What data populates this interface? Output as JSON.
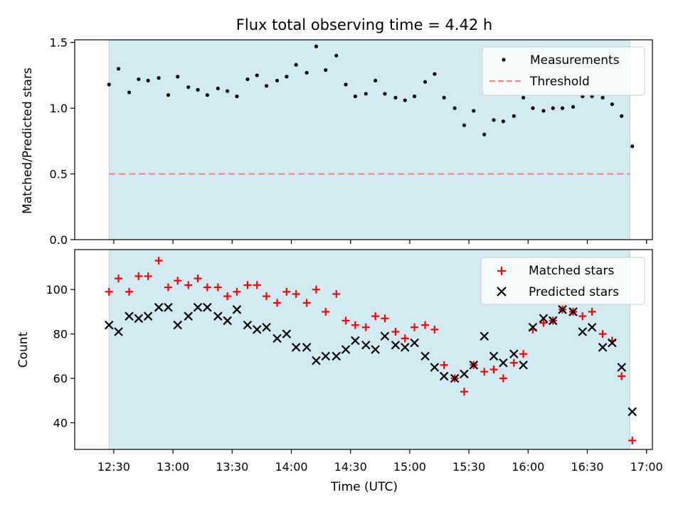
{
  "title": "Flux total observing time = 4.42 h",
  "colors": {
    "shade": "#add8e6",
    "measurements": "#000000",
    "threshold": "#ff7f7f",
    "matched": "#ff0000",
    "predicted": "#000000"
  },
  "x_axis": {
    "label": "Time (UTC)",
    "ticks": [
      {
        "t": 12.5,
        "label": "12:30"
      },
      {
        "t": 13.0,
        "label": "13:00"
      },
      {
        "t": 13.5,
        "label": "13:30"
      },
      {
        "t": 14.0,
        "label": "14:00"
      },
      {
        "t": 14.5,
        "label": "14:30"
      },
      {
        "t": 15.0,
        "label": "15:00"
      },
      {
        "t": 15.5,
        "label": "15:30"
      },
      {
        "t": 16.0,
        "label": "16:00"
      },
      {
        "t": 16.5,
        "label": "16:30"
      },
      {
        "t": 17.0,
        "label": "17:00"
      }
    ]
  },
  "chart_data": [
    {
      "type": "scatter",
      "title": "Flux total observing time = 4.42 h",
      "xlabel": "",
      "ylabel": "Matched/Predicted stars",
      "xlim": [
        12.17,
        17.05
      ],
      "ylim": [
        0,
        1.52
      ],
      "yticks": [
        {
          "v": 0.0,
          "label": "0.0"
        },
        {
          "v": 0.5,
          "label": "0.5"
        },
        {
          "v": 1.0,
          "label": "1.0"
        },
        {
          "v": 1.5,
          "label": "1.5"
        }
      ],
      "shaded_interval": [
        12.46,
        16.86
      ],
      "legend_position": "top-right",
      "series": [
        {
          "name": "Measurements",
          "marker": "dot",
          "x": [
            12.46,
            12.54,
            12.63,
            12.71,
            12.79,
            12.88,
            12.96,
            13.04,
            13.13,
            13.21,
            13.29,
            13.38,
            13.46,
            13.54,
            13.63,
            13.71,
            13.79,
            13.88,
            13.96,
            14.04,
            14.13,
            14.21,
            14.29,
            14.38,
            14.46,
            14.54,
            14.63,
            14.71,
            14.79,
            14.88,
            14.96,
            15.04,
            15.13,
            15.21,
            15.29,
            15.38,
            15.46,
            15.54,
            15.63,
            15.71,
            15.79,
            15.88,
            15.96,
            16.04,
            16.13,
            16.21,
            16.29,
            16.38,
            16.46,
            16.54,
            16.63,
            16.71,
            16.79,
            16.88
          ],
          "y": [
            1.18,
            1.3,
            1.12,
            1.22,
            1.21,
            1.23,
            1.1,
            1.24,
            1.16,
            1.14,
            1.1,
            1.15,
            1.13,
            1.09,
            1.22,
            1.25,
            1.17,
            1.21,
            1.24,
            1.33,
            1.27,
            1.47,
            1.29,
            1.4,
            1.18,
            1.09,
            1.11,
            1.21,
            1.11,
            1.08,
            1.06,
            1.09,
            1.2,
            1.26,
            1.08,
            1.0,
            0.87,
            0.98,
            0.8,
            0.91,
            0.9,
            0.94,
            1.08,
            1.0,
            0.98,
            1.0,
            1.0,
            1.01,
            1.09,
            1.09,
            1.08,
            1.03,
            0.94,
            0.71
          ]
        },
        {
          "name": "Threshold",
          "marker": "dashed-line",
          "x": [
            12.46,
            16.86
          ],
          "y": [
            0.5,
            0.5
          ]
        }
      ]
    },
    {
      "type": "scatter",
      "title": "",
      "xlabel": "Time (UTC)",
      "ylabel": "Count",
      "xlim": [
        12.17,
        17.05
      ],
      "ylim": [
        28,
        118
      ],
      "yticks": [
        {
          "v": 40,
          "label": "40"
        },
        {
          "v": 60,
          "label": "60"
        },
        {
          "v": 80,
          "label": "80"
        },
        {
          "v": 100,
          "label": "100"
        }
      ],
      "shaded_interval": [
        12.46,
        16.86
      ],
      "legend_position": "top-right",
      "series": [
        {
          "name": "Matched stars",
          "marker": "plus",
          "x": [
            12.46,
            12.54,
            12.63,
            12.71,
            12.79,
            12.88,
            12.96,
            13.04,
            13.13,
            13.21,
            13.29,
            13.38,
            13.46,
            13.54,
            13.63,
            13.71,
            13.79,
            13.88,
            13.96,
            14.04,
            14.13,
            14.21,
            14.29,
            14.38,
            14.46,
            14.54,
            14.63,
            14.71,
            14.79,
            14.88,
            14.96,
            15.04,
            15.13,
            15.21,
            15.29,
            15.38,
            15.46,
            15.54,
            15.63,
            15.71,
            15.79,
            15.88,
            15.96,
            16.04,
            16.13,
            16.21,
            16.29,
            16.38,
            16.46,
            16.54,
            16.63,
            16.71,
            16.79,
            16.88
          ],
          "y": [
            99,
            105,
            99,
            106,
            106,
            113,
            101,
            104,
            102,
            105,
            101,
            101,
            97,
            99,
            102,
            102,
            97,
            94,
            99,
            98,
            94,
            100,
            90,
            98,
            86,
            84,
            83,
            88,
            87,
            81,
            78,
            83,
            84,
            82,
            66,
            60,
            54,
            66,
            63,
            64,
            60,
            67,
            71,
            82,
            85,
            86,
            91,
            90,
            88,
            90,
            80,
            77,
            61,
            32
          ]
        },
        {
          "name": "Predicted stars",
          "marker": "x",
          "x": [
            12.46,
            12.54,
            12.63,
            12.71,
            12.79,
            12.88,
            12.96,
            13.04,
            13.13,
            13.21,
            13.29,
            13.38,
            13.46,
            13.54,
            13.63,
            13.71,
            13.79,
            13.88,
            13.96,
            14.04,
            14.13,
            14.21,
            14.29,
            14.38,
            14.46,
            14.54,
            14.63,
            14.71,
            14.79,
            14.88,
            14.96,
            15.04,
            15.13,
            15.21,
            15.29,
            15.38,
            15.46,
            15.54,
            15.63,
            15.71,
            15.79,
            15.88,
            15.96,
            16.04,
            16.13,
            16.21,
            16.29,
            16.38,
            16.46,
            16.54,
            16.63,
            16.71,
            16.79,
            16.88
          ],
          "y": [
            84,
            81,
            88,
            87,
            88,
            92,
            92,
            84,
            88,
            92,
            92,
            88,
            86,
            91,
            84,
            82,
            83,
            78,
            80,
            74,
            74,
            68,
            70,
            70,
            73,
            77,
            75,
            73,
            79,
            75,
            74,
            76,
            70,
            65,
            61,
            60,
            62,
            66,
            79,
            70,
            67,
            71,
            66,
            83,
            87,
            86,
            91,
            90,
            81,
            83,
            74,
            76,
            65,
            45
          ]
        }
      ]
    }
  ]
}
